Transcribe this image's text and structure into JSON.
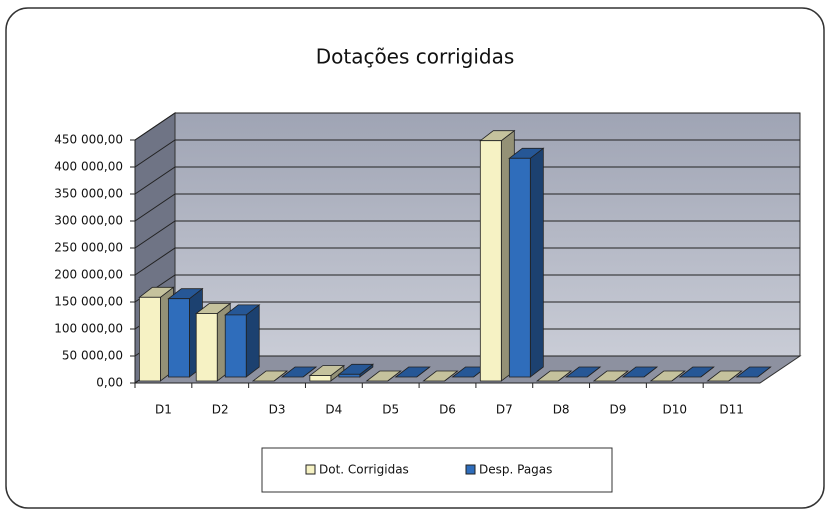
{
  "chart_data": {
    "type": "bar",
    "title": "Dotações corrigidas",
    "categories": [
      "D1",
      "D2",
      "D3",
      "D4",
      "D5",
      "D6",
      "D7",
      "D8",
      "D9",
      "D10",
      "D11"
    ],
    "series": [
      {
        "name": "Dot. Corrigidas",
        "color": "#f6f2c4",
        "values": [
          155000,
          125000,
          0,
          10000,
          0,
          0,
          445000,
          0,
          0,
          0,
          0
        ]
      },
      {
        "name": "Desp. Pagas",
        "color": "#2f6dbb",
        "values": [
          145000,
          115000,
          0,
          5000,
          0,
          0,
          405000,
          0,
          0,
          0,
          0
        ]
      }
    ],
    "ylim": [
      0,
      450000
    ],
    "yticks": [
      {
        "value": 0,
        "label": "0,00"
      },
      {
        "value": 50000,
        "label": "50 000,00"
      },
      {
        "value": 100000,
        "label": "100 000,00"
      },
      {
        "value": 150000,
        "label": "150 000,00"
      },
      {
        "value": 200000,
        "label": "200 000,00"
      },
      {
        "value": 250000,
        "label": "250 000,00"
      },
      {
        "value": 300000,
        "label": "300 000,00"
      },
      {
        "value": 350000,
        "label": "350 000,00"
      },
      {
        "value": 400000,
        "label": "400 000,00"
      },
      {
        "value": 450000,
        "label": "450 000,00"
      }
    ],
    "grid": true,
    "legend": "bottom"
  }
}
